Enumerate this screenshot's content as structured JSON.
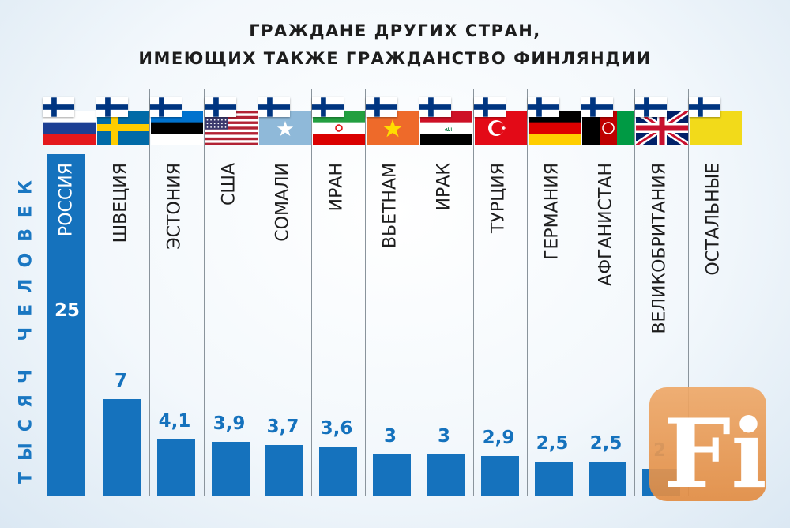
{
  "title_line1": "ГРАЖДАНЕ ДРУГИХ СТРАН,",
  "title_line2": "ИМЕЮЩИХ ТАКЖЕ ГРАЖДАНСТВО ФИНЛЯНДИИ",
  "y_axis_label": "ТЫСЯЧ ЧЕЛОВЕК",
  "logo_text": "Fi",
  "colors": {
    "bar": "#1572bd",
    "value_text": "#1572bd",
    "title": "#1d1d1d"
  },
  "chart_data": {
    "type": "bar",
    "ylabel": "ТЫСЯЧ ЧЕЛОВЕК",
    "ylim": [
      0,
      25
    ],
    "categories": [
      "РОССИЯ",
      "ШВЕЦИЯ",
      "ЭСТОНИЯ",
      "США",
      "СОМАЛИ",
      "ИРАН",
      "ВЬЕТНАМ",
      "ИРАК",
      "ТУРЦИЯ",
      "ГЕРМАНИЯ",
      "АФГАНИСТАН",
      "ВЕЛИКОБРИТАНИЯ",
      "ОСТАЛЬНЫЕ"
    ],
    "values": [
      25,
      7,
      4.1,
      3.9,
      3.7,
      3.6,
      3,
      3,
      2.9,
      2.5,
      2.5,
      2,
      null
    ],
    "value_labels": [
      "25",
      "7",
      "4,1",
      "3,9",
      "3,7",
      "3,6",
      "3",
      "3",
      "2,9",
      "2,5",
      "2,5",
      "2",
      ""
    ],
    "flags": [
      "russia-flag",
      "sweden-flag",
      "estonia-flag",
      "usa-flag",
      "somalia-flag",
      "iran-flag",
      "vietnam-flag",
      "iraq-flag",
      "turkey-flag",
      "germany-flag",
      "afghanistan-flag",
      "uk-flag",
      "other-flag"
    ]
  }
}
